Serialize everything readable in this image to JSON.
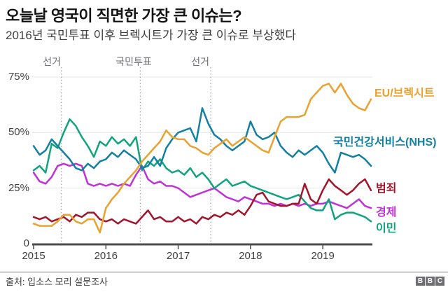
{
  "header": {
    "title": "오늘날 영국이 직면한 가장 큰 이슈는?",
    "subtitle": "2016년 국민투표 이후 브렉시트가 가장 큰 이슈로 부상했다"
  },
  "chart_data": {
    "type": "line",
    "x_start": "2015-01",
    "x_interval": "monthly",
    "x_point_count": 57,
    "x_tick_labels": [
      "2015",
      "2016",
      "2017",
      "2018",
      "2019"
    ],
    "x_tick_month_index": [
      0,
      12,
      24,
      36,
      48
    ],
    "y_ticks": [
      "75%",
      "50%",
      "25%",
      "0"
    ],
    "y_tick_values": [
      75,
      50,
      25,
      0
    ],
    "ylim": [
      0,
      80
    ],
    "grid": "horizontal",
    "legend_position": "right-of-lines",
    "events": [
      {
        "label": "선거",
        "month_index": 4.6
      },
      {
        "label": "국민투표",
        "month_index": 17.7
      },
      {
        "label": "선거",
        "month_index": 29.4
      }
    ],
    "series": [
      {
        "name": "경제",
        "color": "#be32d7",
        "values": [
          32,
          28,
          27,
          30,
          35,
          36,
          35,
          36,
          35,
          27,
          26,
          27,
          26,
          27,
          26,
          27,
          26,
          31,
          35,
          29,
          27,
          28,
          26,
          26,
          25,
          23,
          21,
          22,
          23,
          24,
          25,
          23,
          21,
          20,
          19,
          21,
          20,
          19,
          18,
          18,
          17,
          18,
          17,
          18,
          17,
          18,
          17,
          18,
          18,
          19,
          18,
          17,
          16,
          18,
          20,
          17,
          16
        ]
      },
      {
        "name": "이민",
        "color": "#0fa47e",
        "values": [
          33,
          35,
          32,
          45,
          43,
          50,
          56,
          53,
          48,
          44,
          39,
          46,
          44,
          48,
          45,
          47,
          44,
          48,
          33,
          37,
          35,
          38,
          34,
          32,
          33,
          31,
          34,
          30,
          32,
          29,
          25,
          27,
          29,
          26,
          27,
          28,
          26,
          25,
          24,
          23,
          22,
          21,
          20,
          21,
          22,
          19,
          16,
          15,
          15,
          20,
          11,
          13,
          14,
          14,
          13,
          12,
          10
        ]
      },
      {
        "name": "범죄",
        "color": "#a1152c",
        "values": [
          12,
          11,
          12,
          10,
          11,
          12,
          10,
          13,
          12,
          14,
          14,
          11,
          10,
          11,
          9,
          11,
          10,
          9,
          12,
          15,
          11,
          12,
          10,
          10,
          12,
          10,
          11,
          9,
          12,
          11,
          13,
          12,
          14,
          13,
          15,
          13,
          17,
          22,
          23,
          19,
          18,
          17,
          17,
          18,
          18,
          27,
          20,
          18,
          24,
          29,
          26,
          24,
          22,
          24,
          27,
          29,
          24
        ]
      },
      {
        "name": "국민건강서비스(NHS)",
        "color": "#1380a1",
        "values": [
          44,
          40,
          42,
          47,
          44,
          41,
          38,
          34,
          33,
          36,
          34,
          37,
          38,
          41,
          39,
          42,
          40,
          38,
          34,
          35,
          39,
          35,
          43,
          47,
          50,
          51,
          52,
          46,
          61,
          54,
          49,
          47,
          44,
          42,
          44,
          46,
          55,
          49,
          47,
          48,
          50,
          44,
          41,
          39,
          42,
          40,
          42,
          44,
          41,
          36,
          32,
          41,
          40,
          39,
          40,
          38,
          35
        ]
      },
      {
        "name": "EU/브렉시트",
        "color": "#e9a22f",
        "values": [
          9,
          8,
          8,
          8,
          10,
          13,
          13,
          10,
          9,
          11,
          11,
          5,
          16,
          20,
          23,
          27,
          30,
          33,
          37,
          40,
          43,
          46,
          51,
          48,
          47,
          47,
          44,
          43,
          41,
          40,
          43,
          45,
          47,
          44,
          46,
          48,
          46,
          44,
          42,
          41,
          48,
          55,
          57,
          57,
          57,
          58,
          65,
          68,
          71,
          72,
          68,
          72,
          67,
          63,
          61,
          60,
          65
        ]
      }
    ],
    "style": {
      "grid_color": "#e7e7e7",
      "axis_color": "#4d4d4d",
      "event_line_color": "#a6a6a6",
      "line_width": 2.5
    }
  },
  "labels": {
    "eu": "EU/브렉시트",
    "nhs": "국민건강서비스(NHS)",
    "crime": "범죄",
    "economy": "경제",
    "immigration": "이민"
  },
  "footer": {
    "source": "출처: 입소스 모리 설문조사",
    "logo_letters": [
      "B",
      "B",
      "C"
    ]
  }
}
